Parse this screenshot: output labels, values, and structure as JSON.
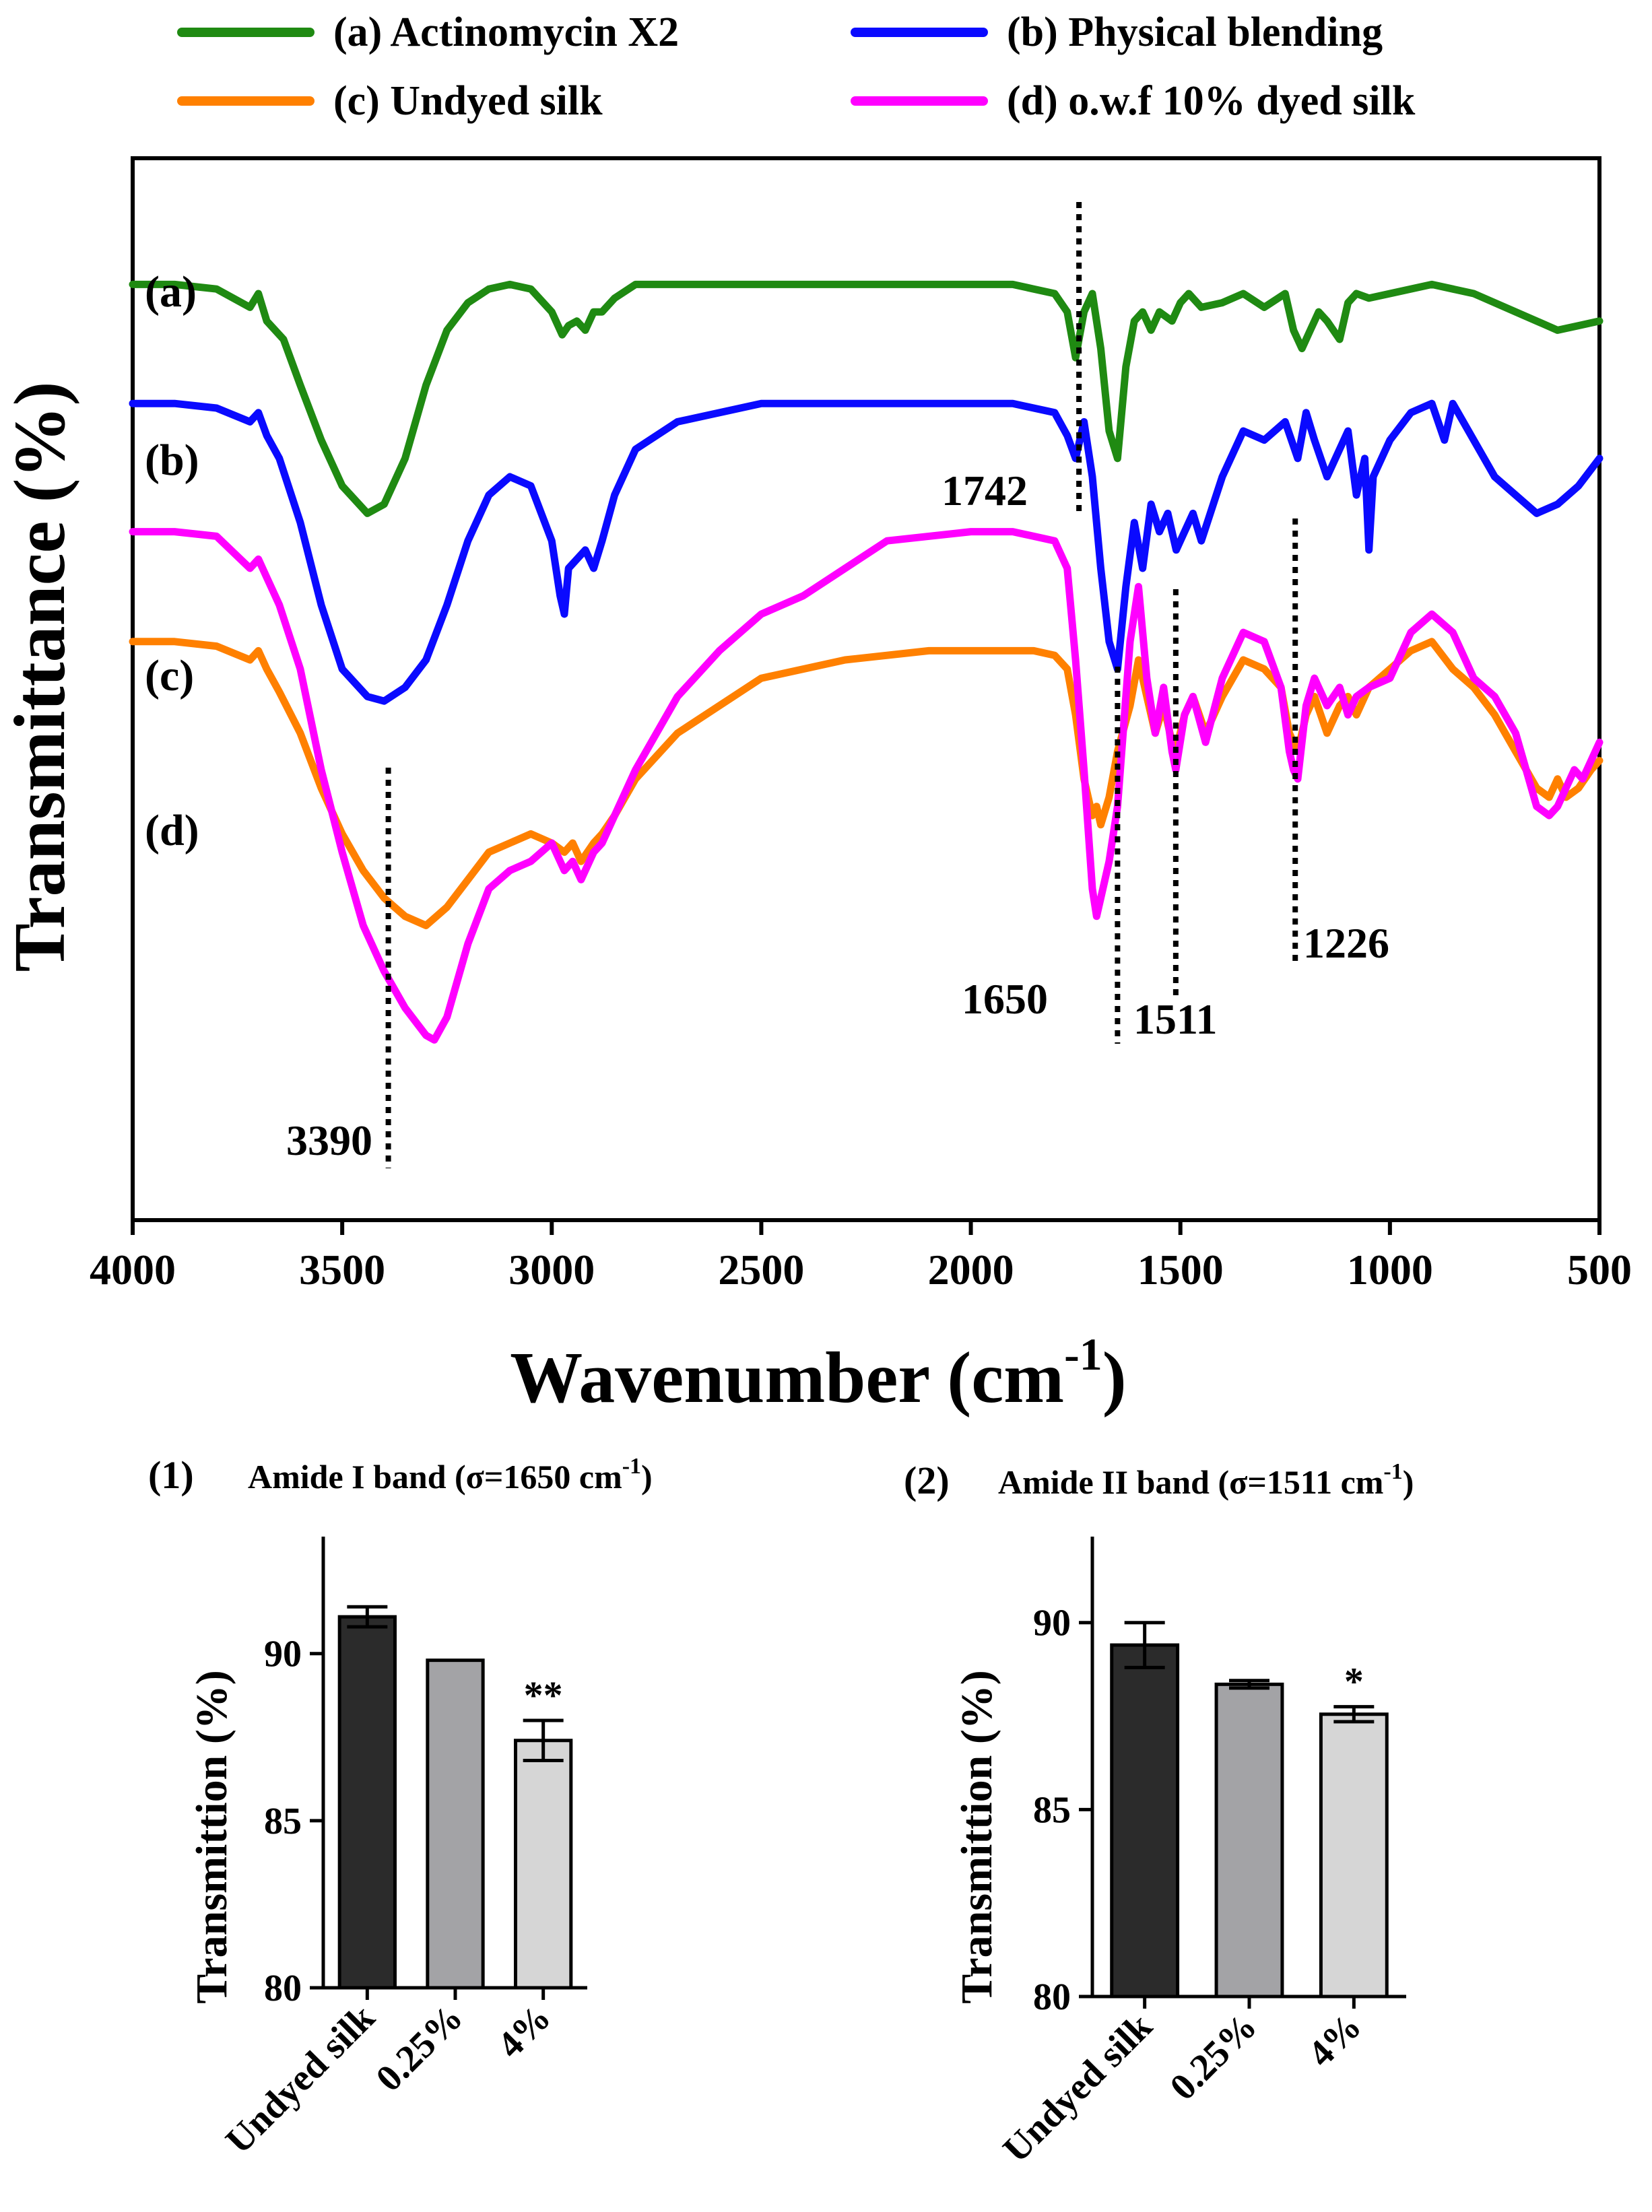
{
  "colors": {
    "series_a": "#1f8a12",
    "series_b": "#0a0aff",
    "series_c": "#ff8000",
    "series_d": "#ff00ff",
    "bar_undyed": "#2b2b2b",
    "bar_025": "#a3a3a6",
    "bar_4": "#d6d6d6"
  },
  "chart_data": [
    {
      "type": "line",
      "title": "",
      "xlabel": "Wavenumber (cm",
      "xlabel_sup": "-1",
      "xlabel_close": ")",
      "ylabel": "Transmittance (%)",
      "xlim": [
        4000,
        500
      ],
      "xticks": [
        "4000",
        "3500",
        "3000",
        "2500",
        "2000",
        "1500",
        "1000",
        "500"
      ],
      "xtick_values": [
        4000,
        3500,
        3000,
        2500,
        2000,
        1500,
        1000,
        500
      ],
      "ylim": [
        0,
        1
      ],
      "yticks": [],
      "grid": false,
      "legend": [
        {
          "label": "(a) Actinomycin X2",
          "color_key": "series_a"
        },
        {
          "label": "(b) Physical blending",
          "color_key": "series_b"
        },
        {
          "label": "(c) Undyed silk",
          "color_key": "series_c"
        },
        {
          "label": "(d) o.w.f 10% dyed silk",
          "color_key": "series_d"
        }
      ],
      "series": [
        {
          "name": "(a)",
          "tag": "(a)",
          "color_key": "series_a",
          "x": [
            4000,
            3900,
            3800,
            3720,
            3700,
            3680,
            3640,
            3600,
            3550,
            3500,
            3440,
            3400,
            3350,
            3300,
            3250,
            3200,
            3150,
            3100,
            3050,
            3000,
            2975,
            2960,
            2940,
            2920,
            2900,
            2880,
            2850,
            2800,
            2700,
            2500,
            2300,
            2100,
            1900,
            1850,
            1800,
            1770,
            1750,
            1730,
            1710,
            1690,
            1670,
            1650,
            1630,
            1610,
            1590,
            1570,
            1550,
            1520,
            1500,
            1480,
            1450,
            1400,
            1350,
            1300,
            1250,
            1230,
            1210,
            1190,
            1170,
            1150,
            1120,
            1100,
            1080,
            1050,
            1000,
            900,
            800,
            700,
            650,
            600,
            550,
            500
          ],
          "y": [
            0.91,
            0.91,
            0.905,
            0.885,
            0.9,
            0.87,
            0.85,
            0.8,
            0.74,
            0.69,
            0.66,
            0.67,
            0.72,
            0.8,
            0.86,
            0.89,
            0.905,
            0.91,
            0.905,
            0.88,
            0.855,
            0.865,
            0.87,
            0.86,
            0.88,
            0.88,
            0.895,
            0.91,
            0.91,
            0.91,
            0.91,
            0.91,
            0.91,
            0.905,
            0.9,
            0.88,
            0.83,
            0.88,
            0.9,
            0.84,
            0.75,
            0.72,
            0.82,
            0.87,
            0.88,
            0.86,
            0.88,
            0.87,
            0.89,
            0.9,
            0.885,
            0.89,
            0.9,
            0.885,
            0.9,
            0.86,
            0.84,
            0.86,
            0.88,
            0.87,
            0.85,
            0.89,
            0.9,
            0.895,
            0.9,
            0.91,
            0.9,
            0.88,
            0.87,
            0.86,
            0.865,
            0.87
          ]
        },
        {
          "name": "(b)",
          "tag": "(b)",
          "color_key": "series_b",
          "x": [
            4000,
            3900,
            3800,
            3720,
            3700,
            3680,
            3650,
            3600,
            3550,
            3500,
            3440,
            3400,
            3350,
            3300,
            3250,
            3200,
            3150,
            3100,
            3050,
            3000,
            2980,
            2970,
            2960,
            2940,
            2920,
            2900,
            2880,
            2850,
            2800,
            2700,
            2500,
            2300,
            2100,
            1900,
            1850,
            1800,
            1770,
            1750,
            1730,
            1710,
            1690,
            1670,
            1650,
            1630,
            1610,
            1590,
            1570,
            1550,
            1530,
            1510,
            1490,
            1470,
            1450,
            1400,
            1350,
            1300,
            1250,
            1220,
            1200,
            1180,
            1150,
            1100,
            1080,
            1060,
            1050,
            1040,
            1000,
            950,
            900,
            870,
            850,
            800,
            750,
            700,
            650,
            600,
            550,
            500
          ],
          "y": [
            0.78,
            0.78,
            0.775,
            0.76,
            0.77,
            0.745,
            0.72,
            0.65,
            0.56,
            0.49,
            0.46,
            0.455,
            0.47,
            0.5,
            0.56,
            0.63,
            0.68,
            0.7,
            0.69,
            0.63,
            0.57,
            0.55,
            0.6,
            0.61,
            0.62,
            0.6,
            0.63,
            0.68,
            0.73,
            0.76,
            0.78,
            0.78,
            0.78,
            0.78,
            0.775,
            0.77,
            0.745,
            0.72,
            0.76,
            0.7,
            0.6,
            0.52,
            0.49,
            0.58,
            0.65,
            0.6,
            0.67,
            0.64,
            0.66,
            0.62,
            0.64,
            0.66,
            0.63,
            0.7,
            0.75,
            0.74,
            0.76,
            0.72,
            0.77,
            0.74,
            0.7,
            0.75,
            0.68,
            0.72,
            0.62,
            0.7,
            0.74,
            0.77,
            0.78,
            0.74,
            0.78,
            0.74,
            0.7,
            0.68,
            0.66,
            0.67,
            0.69,
            0.72
          ]
        },
        {
          "name": "(c)",
          "tag": "(c)",
          "color_key": "series_c",
          "x": [
            4000,
            3900,
            3800,
            3720,
            3700,
            3680,
            3650,
            3600,
            3550,
            3500,
            3450,
            3400,
            3350,
            3300,
            3250,
            3200,
            3150,
            3100,
            3050,
            3000,
            2970,
            2950,
            2930,
            2900,
            2880,
            2850,
            2800,
            2700,
            2600,
            2500,
            2300,
            2100,
            1900,
            1850,
            1800,
            1770,
            1750,
            1730,
            1710,
            1700,
            1690,
            1670,
            1650,
            1620,
            1600,
            1580,
            1560,
            1540,
            1520,
            1511,
            1490,
            1470,
            1440,
            1400,
            1350,
            1300,
            1260,
            1240,
            1230,
            1220,
            1200,
            1180,
            1150,
            1120,
            1100,
            1080,
            1050,
            1000,
            950,
            900,
            850,
            800,
            750,
            700,
            650,
            620,
            600,
            580,
            550,
            520,
            500
          ],
          "y": [
            0.52,
            0.52,
            0.515,
            0.5,
            0.51,
            0.49,
            0.465,
            0.42,
            0.36,
            0.31,
            0.27,
            0.24,
            0.22,
            0.21,
            0.23,
            0.26,
            0.29,
            0.3,
            0.31,
            0.3,
            0.29,
            0.3,
            0.28,
            0.3,
            0.31,
            0.33,
            0.37,
            0.42,
            0.45,
            0.48,
            0.5,
            0.51,
            0.51,
            0.51,
            0.505,
            0.49,
            0.44,
            0.37,
            0.33,
            0.34,
            0.32,
            0.35,
            0.4,
            0.45,
            0.5,
            0.46,
            0.42,
            0.45,
            0.41,
            0.4,
            0.44,
            0.46,
            0.42,
            0.46,
            0.5,
            0.49,
            0.47,
            0.42,
            0.41,
            0.4,
            0.44,
            0.46,
            0.42,
            0.45,
            0.46,
            0.44,
            0.47,
            0.49,
            0.51,
            0.52,
            0.49,
            0.47,
            0.44,
            0.4,
            0.36,
            0.35,
            0.37,
            0.35,
            0.36,
            0.38,
            0.39
          ]
        },
        {
          "name": "(d)",
          "tag": "(d)",
          "color_key": "series_d",
          "x": [
            4000,
            3900,
            3800,
            3720,
            3700,
            3680,
            3650,
            3600,
            3550,
            3500,
            3450,
            3400,
            3350,
            3300,
            3280,
            3250,
            3200,
            3150,
            3100,
            3050,
            3000,
            2970,
            2950,
            2930,
            2900,
            2880,
            2850,
            2800,
            2700,
            2600,
            2500,
            2400,
            2300,
            2200,
            2000,
            1900,
            1850,
            1800,
            1770,
            1750,
            1730,
            1710,
            1700,
            1690,
            1670,
            1650,
            1620,
            1600,
            1580,
            1560,
            1540,
            1520,
            1511,
            1490,
            1470,
            1440,
            1400,
            1350,
            1300,
            1260,
            1240,
            1230,
            1220,
            1200,
            1180,
            1150,
            1120,
            1100,
            1080,
            1050,
            1000,
            950,
            900,
            850,
            800,
            750,
            700,
            650,
            620,
            600,
            580,
            560,
            540,
            520,
            500
          ],
          "y": [
            0.64,
            0.64,
            0.635,
            0.6,
            0.61,
            0.59,
            0.56,
            0.49,
            0.38,
            0.29,
            0.21,
            0.16,
            0.12,
            0.09,
            0.085,
            0.11,
            0.19,
            0.25,
            0.27,
            0.28,
            0.3,
            0.27,
            0.28,
            0.26,
            0.29,
            0.3,
            0.33,
            0.38,
            0.46,
            0.51,
            0.55,
            0.57,
            0.6,
            0.63,
            0.64,
            0.64,
            0.635,
            0.63,
            0.6,
            0.5,
            0.38,
            0.25,
            0.22,
            0.24,
            0.28,
            0.34,
            0.52,
            0.58,
            0.48,
            0.42,
            0.47,
            0.4,
            0.38,
            0.44,
            0.46,
            0.41,
            0.48,
            0.53,
            0.52,
            0.47,
            0.4,
            0.38,
            0.37,
            0.45,
            0.48,
            0.45,
            0.47,
            0.44,
            0.46,
            0.47,
            0.48,
            0.53,
            0.55,
            0.53,
            0.48,
            0.46,
            0.42,
            0.34,
            0.33,
            0.34,
            0.36,
            0.38,
            0.37,
            0.39,
            0.41
          ]
        }
      ],
      "annotations": [
        {
          "label": "1742",
          "x": 1742
        },
        {
          "label": "1650",
          "x": 1650
        },
        {
          "label": "1511",
          "x": 1511
        },
        {
          "label": "1226",
          "x": 1226
        },
        {
          "label": "3390",
          "x": 3390
        }
      ]
    },
    {
      "type": "bar",
      "panel": "(1)",
      "title": "Amide I band (σ=1650 cm",
      "title_sup": "-1",
      "title_close": ")",
      "ylabel": "Transmittion (%)",
      "categories": [
        "Undyed silk",
        "0.25%",
        "4%"
      ],
      "values": [
        91.1,
        89.8,
        87.4
      ],
      "errors": [
        0.3,
        0.0,
        0.6
      ],
      "significance": [
        "",
        "",
        "**"
      ],
      "ylim": [
        80,
        93.5
      ],
      "yticks": [
        80,
        85,
        90
      ],
      "ytick_labels": [
        "80",
        "85",
        "90"
      ],
      "grid": false
    },
    {
      "type": "bar",
      "panel": "(2)",
      "title": "Amide II band  (σ=1511 cm",
      "title_sup": "-1",
      "title_close": ")",
      "ylabel": "Transmittion (%)",
      "categories": [
        "Undyed silk",
        "0.25%",
        "4%"
      ],
      "values": [
        89.4,
        88.35,
        87.55
      ],
      "errors": [
        0.6,
        0.1,
        0.2
      ],
      "significance": [
        "",
        "",
        "*"
      ],
      "ylim": [
        80,
        92.3
      ],
      "yticks": [
        80,
        85,
        90
      ],
      "ytick_labels": [
        "80",
        "85",
        "90"
      ],
      "grid": false
    }
  ]
}
